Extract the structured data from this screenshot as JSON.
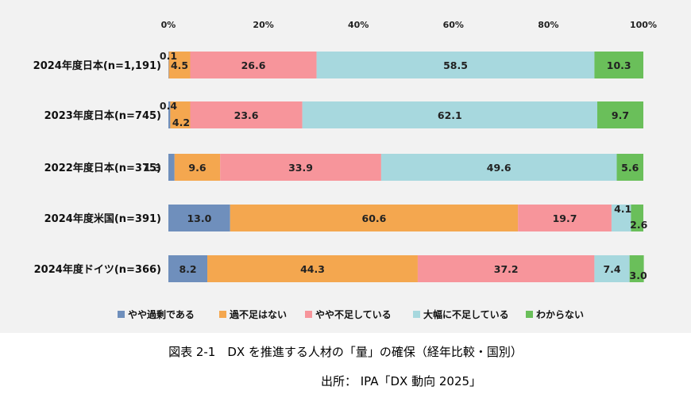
{
  "figure": {
    "title": "図表 2-1　DX を推進する人材の「量」の確保（経年比較・国別）",
    "source": "出所： IPA「DX 動向 2025」"
  },
  "chart_data": {
    "type": "bar",
    "orientation": "horizontal",
    "stacked": true,
    "xlim": [
      0,
      100
    ],
    "x_ticks": [
      "0%",
      "20%",
      "40%",
      "60%",
      "80%",
      "100%"
    ],
    "categories": [
      "2024年度日本(n=1,191)",
      "2023年度日本(n=745)",
      "2022年度日本(n=375)",
      "2024年度米国(n=391)",
      "2024年度ドイツ(n=366)"
    ],
    "series": [
      {
        "name": "やや過剰である",
        "color": "#6f8fbc",
        "values": [
          0.1,
          0.4,
          1.3,
          13.0,
          8.2
        ],
        "labels": [
          "0.1",
          "0.4",
          "1.3",
          "13.0",
          "8.2"
        ]
      },
      {
        "name": "過不足はない",
        "color": "#f4a74f",
        "values": [
          4.5,
          4.2,
          9.6,
          60.6,
          44.3
        ],
        "labels": [
          "4.5",
          "4.2",
          "9.6",
          "60.6",
          "44.3"
        ]
      },
      {
        "name": "やや不足している",
        "color": "#f7959b",
        "values": [
          26.6,
          23.6,
          33.9,
          19.7,
          37.2
        ],
        "labels": [
          "26.6",
          "23.6",
          "33.9",
          "19.7",
          "37.2"
        ]
      },
      {
        "name": "大幅に不足している",
        "color": "#a7d8de",
        "values": [
          58.5,
          62.1,
          49.6,
          4.1,
          7.4
        ],
        "labels": [
          "58.5",
          "62.1",
          "49.6",
          "4.1",
          "7.4"
        ]
      },
      {
        "name": "わからない",
        "color": "#6abf5a",
        "values": [
          10.3,
          9.7,
          5.6,
          2.6,
          3.0
        ],
        "labels": [
          "10.3",
          "9.7",
          "5.6",
          "2.6",
          "3.0"
        ]
      }
    ],
    "legend_position": "bottom",
    "grid": false
  }
}
